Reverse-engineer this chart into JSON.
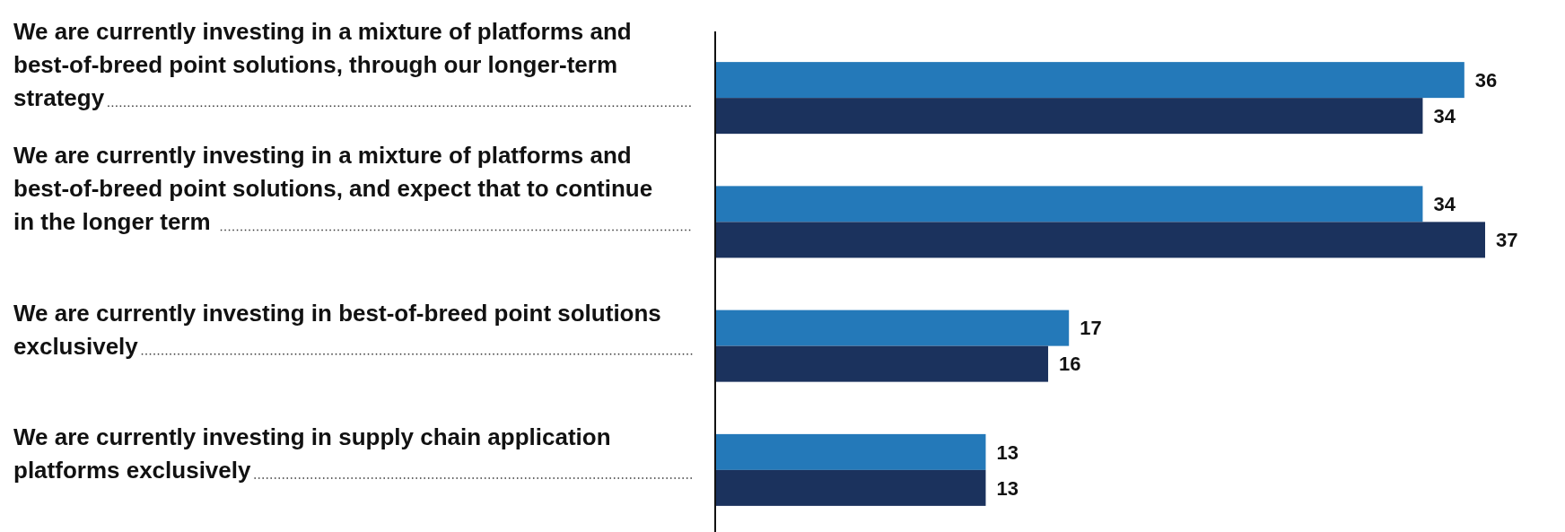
{
  "chart_data": {
    "type": "bar",
    "orientation": "horizontal",
    "data_labels": true,
    "categories": [
      "We are currently investing in a mixture of platforms and best-of-breed point solutions, through our longer-term strategy",
      "We are currently investing in a mixture of platforms and best-of-breed point solutions, and expect that to continue in  the longer term",
      "We are currently investing in best-of-breed point solutions exclusively",
      "We are currently investing in supply chain application platforms exclusively"
    ],
    "series": [
      {
        "color": "#2479b9",
        "values": [
          36,
          34,
          17,
          13
        ]
      },
      {
        "color": "#1b325d",
        "values": [
          34,
          37,
          16,
          13
        ]
      }
    ]
  }
}
